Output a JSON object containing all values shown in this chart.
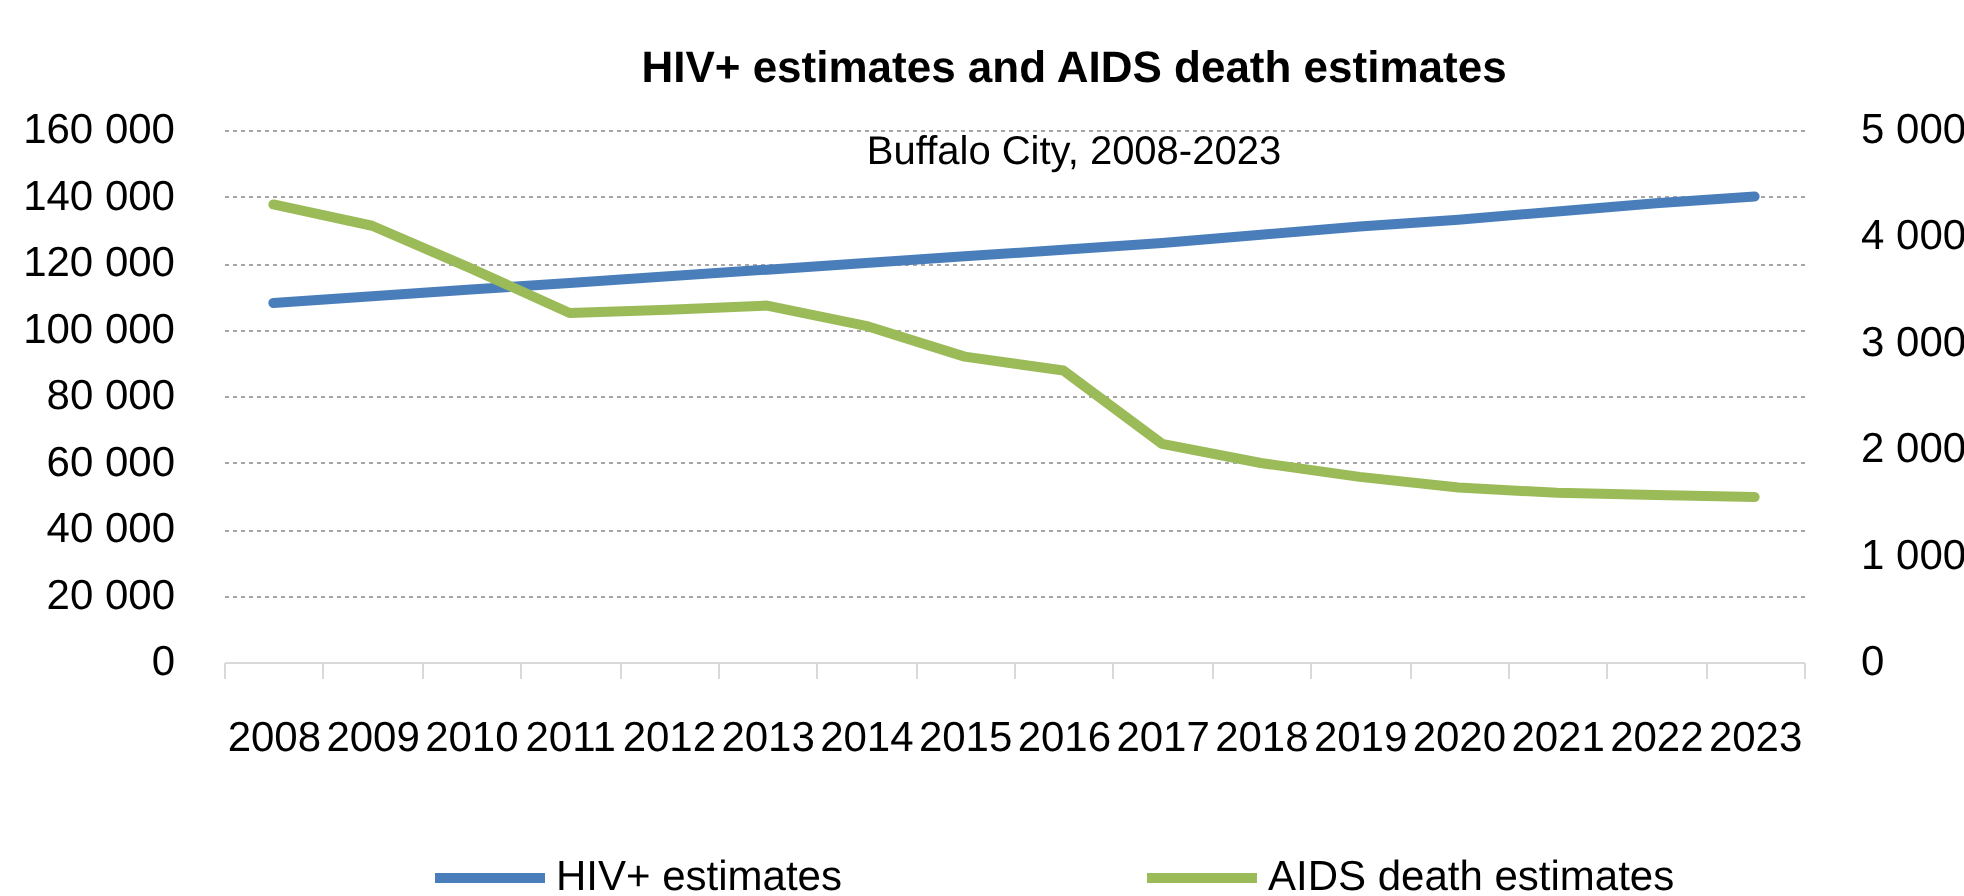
{
  "chart_data": {
    "type": "line",
    "title": "HIV+ estimates and AIDS death estimates",
    "subtitle": "Buffalo City, 2008-2023",
    "categories": [
      "2008",
      "2009",
      "2010",
      "2011",
      "2012",
      "2013",
      "2014",
      "2015",
      "2016",
      "2017",
      "2018",
      "2019",
      "2020",
      "2021",
      "2022",
      "2023"
    ],
    "series": [
      {
        "name": "HIV+ estimates",
        "color": "#4a7ebb",
        "values": [
          108000,
          110000,
          112000,
          114000,
          116000,
          118000,
          120000,
          122000,
          124000,
          126000,
          128500,
          131000,
          133000,
          135500,
          138000,
          140000
        ]
      },
      {
        "name": "AIDS death estimates",
        "color": "#9bbb59",
        "axis": "y2",
        "values": [
          4300,
          4100,
          3700,
          3280,
          3310,
          3350,
          3160,
          2870,
          2740,
          2050,
          1870,
          1740,
          1640,
          1590,
          1570,
          1550
        ]
      }
    ],
    "ylim": [
      0,
      160000
    ],
    "yticks": [
      0,
      {
        "value": 20000,
        "label": "20 000"
      },
      {
        "value": 40000,
        "label": "40 000"
      },
      {
        "value": 60000,
        "label": "60 000"
      },
      {
        "value": 80000,
        "label": "80 000"
      },
      {
        "value": 100000,
        "label": "100 000"
      },
      {
        "value": 120000,
        "label": "120 000"
      },
      {
        "value": 140000,
        "label": "140 000"
      },
      {
        "value": 160000,
        "label": "160 000"
      }
    ],
    "y2lim": [
      0,
      5000
    ],
    "y2ticks": [
      0,
      {
        "value": 1000,
        "label": "1 000"
      },
      {
        "value": 2000,
        "label": "2 000"
      },
      {
        "value": 3000,
        "label": "3 000"
      },
      {
        "value": 4000,
        "label": "4 000"
      },
      {
        "value": 5000,
        "label": "5 000"
      }
    ],
    "grid": "y",
    "legend": "bottom"
  }
}
